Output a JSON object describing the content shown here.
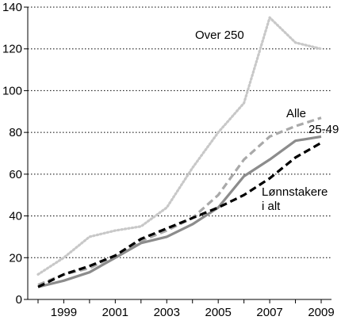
{
  "chart_data": {
    "type": "line",
    "title": "",
    "xlabel": "",
    "ylabel": "",
    "ylim": [
      0,
      140
    ],
    "xlim": [
      1997.6,
      2009.4
    ],
    "yticks": [
      0,
      20,
      40,
      60,
      80,
      100,
      120,
      140
    ],
    "xticks": [
      1999,
      2001,
      2003,
      2005,
      2007,
      2009
    ],
    "grid": "horizontal-dotted",
    "legend": "direct labels",
    "series": [
      {
        "name": "Over 250",
        "color": "#c8c8c8",
        "style": "dotted",
        "x": [
          1998,
          1999,
          2000,
          2001,
          2002,
          2003,
          2004,
          2005,
          2006,
          2007,
          2008,
          2009
        ],
        "y": [
          12,
          20,
          30,
          33,
          35,
          44,
          63,
          80,
          94,
          135,
          123,
          120
        ]
      },
      {
        "name": "Alle",
        "color": "#a9a9a9",
        "style": "dashed",
        "x": [
          1998,
          1999,
          2000,
          2001,
          2002,
          2003,
          2004,
          2005,
          2006,
          2007,
          2008,
          2009
        ],
        "y": [
          7,
          12,
          15,
          21,
          28,
          33,
          39,
          50,
          67,
          78,
          83,
          87
        ]
      },
      {
        "name": "25-49",
        "color": "#8c8c8c",
        "style": "solid",
        "x": [
          1998,
          1999,
          2000,
          2001,
          2002,
          2003,
          2004,
          2005,
          2006,
          2007,
          2008,
          2009
        ],
        "y": [
          6,
          9,
          13,
          20,
          27,
          30,
          36,
          44,
          59,
          67,
          76,
          78
        ]
      },
      {
        "name": "Lønnstakere i alt",
        "color": "#000000",
        "style": "dashed",
        "x": [
          1998,
          1999,
          2000,
          2001,
          2002,
          2003,
          2004,
          2005,
          2006,
          2007,
          2008,
          2009
        ],
        "y": [
          6,
          12,
          16,
          21,
          29,
          34,
          39,
          44,
          50,
          58,
          68,
          75
        ]
      }
    ],
    "annotations": [
      {
        "series": 0,
        "lines": [
          "Over 250"
        ]
      },
      {
        "series": 1,
        "lines": [
          "Alle"
        ]
      },
      {
        "series": 2,
        "lines": [
          "25-49"
        ]
      },
      {
        "series": 3,
        "lines": [
          "Lønnstakere",
          "i alt"
        ]
      }
    ]
  }
}
